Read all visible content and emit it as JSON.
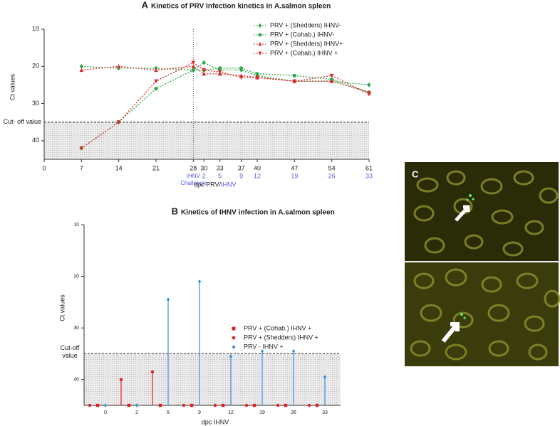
{
  "chart_data": [
    {
      "type": "line",
      "panel": "A",
      "title": "Kinetics of PRV Infection  kinetics in A.salmon spleen",
      "y_label": "Ct values",
      "x_label": "dpc PRV/",
      "x_label_extra": "IHNV",
      "x": [
        7,
        14,
        21,
        28,
        30,
        33,
        37,
        40,
        47,
        54,
        61
      ],
      "series": [
        {
          "name": "PRV + (Shedders) IHNV-",
          "color": "#2ea84a",
          "marker": "diamond",
          "values": [
            20,
            20.5,
            20.5,
            21,
            19,
            21,
            21,
            22.5,
            24,
            24,
            25
          ]
        },
        {
          "name": "PRV + (Cohab.) IHNV-",
          "color": "#2ea84a",
          "marker": "circle",
          "values": [
            42,
            35,
            26,
            21,
            21,
            20.5,
            20.5,
            22,
            22.5,
            23.5,
            27
          ]
        },
        {
          "name": "PRV + (Shedders) IHNV+",
          "color": "#d82f2f",
          "marker": "tri-up",
          "values": [
            21,
            20,
            21,
            20,
            22,
            22,
            22.5,
            23,
            24,
            24,
            27
          ]
        },
        {
          "name": "PRV + (Cohab.) IHNV +",
          "color": "#d82f2f",
          "marker": "tri-down",
          "values": [
            42,
            35,
            24,
            19,
            21,
            21.5,
            23,
            23,
            24,
            22.5,
            27.5
          ]
        }
      ],
      "xlim": [
        0,
        61
      ],
      "xticks": [
        0,
        7,
        14,
        21,
        28,
        30,
        33,
        37,
        40,
        47,
        54,
        61
      ],
      "x2ticks": [
        {
          "value": 30,
          "label": "2"
        },
        {
          "value": 33,
          "label": "5"
        },
        {
          "value": 37,
          "label": "9"
        },
        {
          "value": 40,
          "label": "12"
        },
        {
          "value": 47,
          "label": "19"
        },
        {
          "value": 54,
          "label": "26"
        },
        {
          "value": 61,
          "label": "33"
        }
      ],
      "challenge_x": 28,
      "challenge_label": [
        "IHNV",
        "Challenge"
      ],
      "ylim": [
        10,
        45
      ],
      "yticks": [
        10,
        20,
        30,
        40
      ],
      "y_inverted": true,
      "cutoff": 35,
      "cutoff_label": "Cut- off value",
      "legend": "top-right"
    },
    {
      "type": "lollipop",
      "panel": "B",
      "title": "Kinetics of IHNV infection in A.salmon spleen",
      "y_label": "Ct values",
      "x_label": "dpc IHNV",
      "categories": [
        "0",
        "2",
        "5",
        "9",
        "12",
        "19",
        "26",
        "33"
      ],
      "series": [
        {
          "name": "PRV + (Cohab.) IHNV +",
          "color": "#e02020",
          "marker": "square",
          "values": [
            45,
            45,
            45,
            45,
            45,
            45,
            45,
            45
          ]
        },
        {
          "name": "PRV + (Shedders) IHNV +",
          "color": "#e02020",
          "marker": "circle",
          "values": [
            45,
            40,
            38.5,
            45,
            45,
            45,
            45,
            45
          ]
        },
        {
          "name": "PRV - IHNV +",
          "color": "#3b8fd9",
          "marker": "diamond",
          "values": [
            45,
            45,
            24.5,
            21,
            35.5,
            34.5,
            34.5,
            39.5
          ]
        }
      ],
      "ylim": [
        10,
        45
      ],
      "yticks": [
        10,
        20,
        30,
        40
      ],
      "y_inverted": true,
      "cutoff": 35,
      "cutoff_label": [
        "Cut-off",
        "value"
      ],
      "legend": "center-right"
    }
  ],
  "panel_c": {
    "label": "C"
  }
}
